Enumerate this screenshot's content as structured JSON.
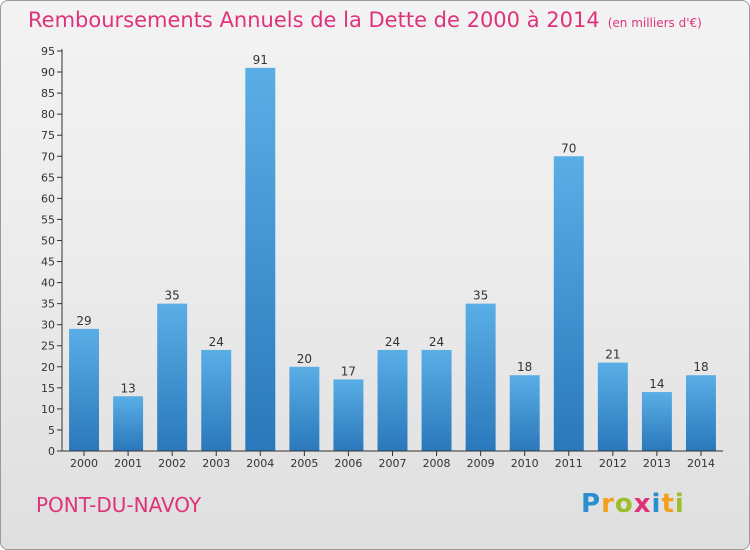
{
  "chart_data": {
    "type": "bar",
    "title": "Remboursements Annuels de la Dette de 2000 à 2014",
    "subtitle": "(en milliers d'€)",
    "categories": [
      "2000",
      "2001",
      "2002",
      "2003",
      "2004",
      "2005",
      "2006",
      "2007",
      "2008",
      "2009",
      "2010",
      "2011",
      "2012",
      "2013",
      "2014"
    ],
    "values": [
      29,
      13,
      35,
      24,
      91,
      20,
      17,
      24,
      24,
      35,
      18,
      70,
      21,
      14,
      18
    ],
    "ylim": [
      0,
      95
    ],
    "yticks": [
      0,
      5,
      10,
      15,
      20,
      25,
      30,
      35,
      40,
      45,
      50,
      55,
      60,
      65,
      70,
      75,
      80,
      85,
      90,
      95
    ],
    "xlabel": "",
    "ylabel": "",
    "grid": false,
    "colors": {
      "bar_light": "#5aaee6",
      "bar_dark": "#2a78bb",
      "title": "#e0327b"
    }
  },
  "commune": "PONT-DU-NAVOY",
  "logo": {
    "letters": [
      "P",
      "r",
      "o",
      "x",
      "i",
      "t",
      "i"
    ]
  }
}
